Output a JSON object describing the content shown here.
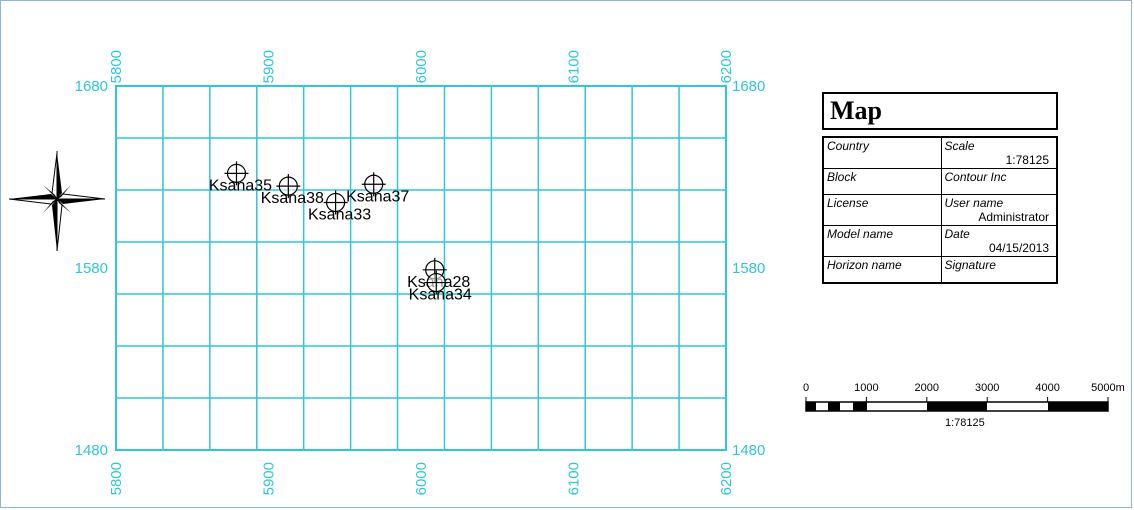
{
  "map": {
    "x_range": [
      5800,
      6200
    ],
    "y_range": [
      1480,
      1680
    ],
    "x_tick_labels": [
      "5800",
      "5900",
      "6000",
      "6100",
      "6200"
    ],
    "y_tick_labels": [
      "1480",
      "1580",
      "1680"
    ],
    "grid_color": "#2fc6d8",
    "label_color": "#2fc6d8",
    "wells": [
      {
        "name": "Ksana35",
        "x": 5879,
        "y": 1632
      },
      {
        "name": "Ksana38",
        "x": 5913,
        "y": 1625
      },
      {
        "name": "Ksana33",
        "x": 5944,
        "y": 1616
      },
      {
        "name": "Ksana37",
        "x": 5969,
        "y": 1626
      },
      {
        "name": "Ksana28",
        "x": 6009,
        "y": 1579
      },
      {
        "name": "Ksana34",
        "x": 6010,
        "y": 1572
      }
    ]
  },
  "legend": {
    "title": "Map",
    "rows": [
      {
        "left": "Country",
        "right": "Scale",
        "right_value": "1:78125"
      },
      {
        "left": "Block",
        "right": "Contour Inc",
        "right_value": ""
      },
      {
        "left": "License",
        "right": "User name",
        "right_value": "Administrator"
      },
      {
        "left": "Model name",
        "right": "Date",
        "right_value": "04/15/2013"
      },
      {
        "left": "Horizon name",
        "right": "Signature",
        "right_value": ""
      }
    ]
  },
  "scalebar": {
    "labels": [
      "0",
      "1000",
      "2000",
      "3000",
      "4000",
      "5000m"
    ],
    "caption": "1:78125"
  },
  "compass": {
    "icon": "compass-rose-icon"
  }
}
